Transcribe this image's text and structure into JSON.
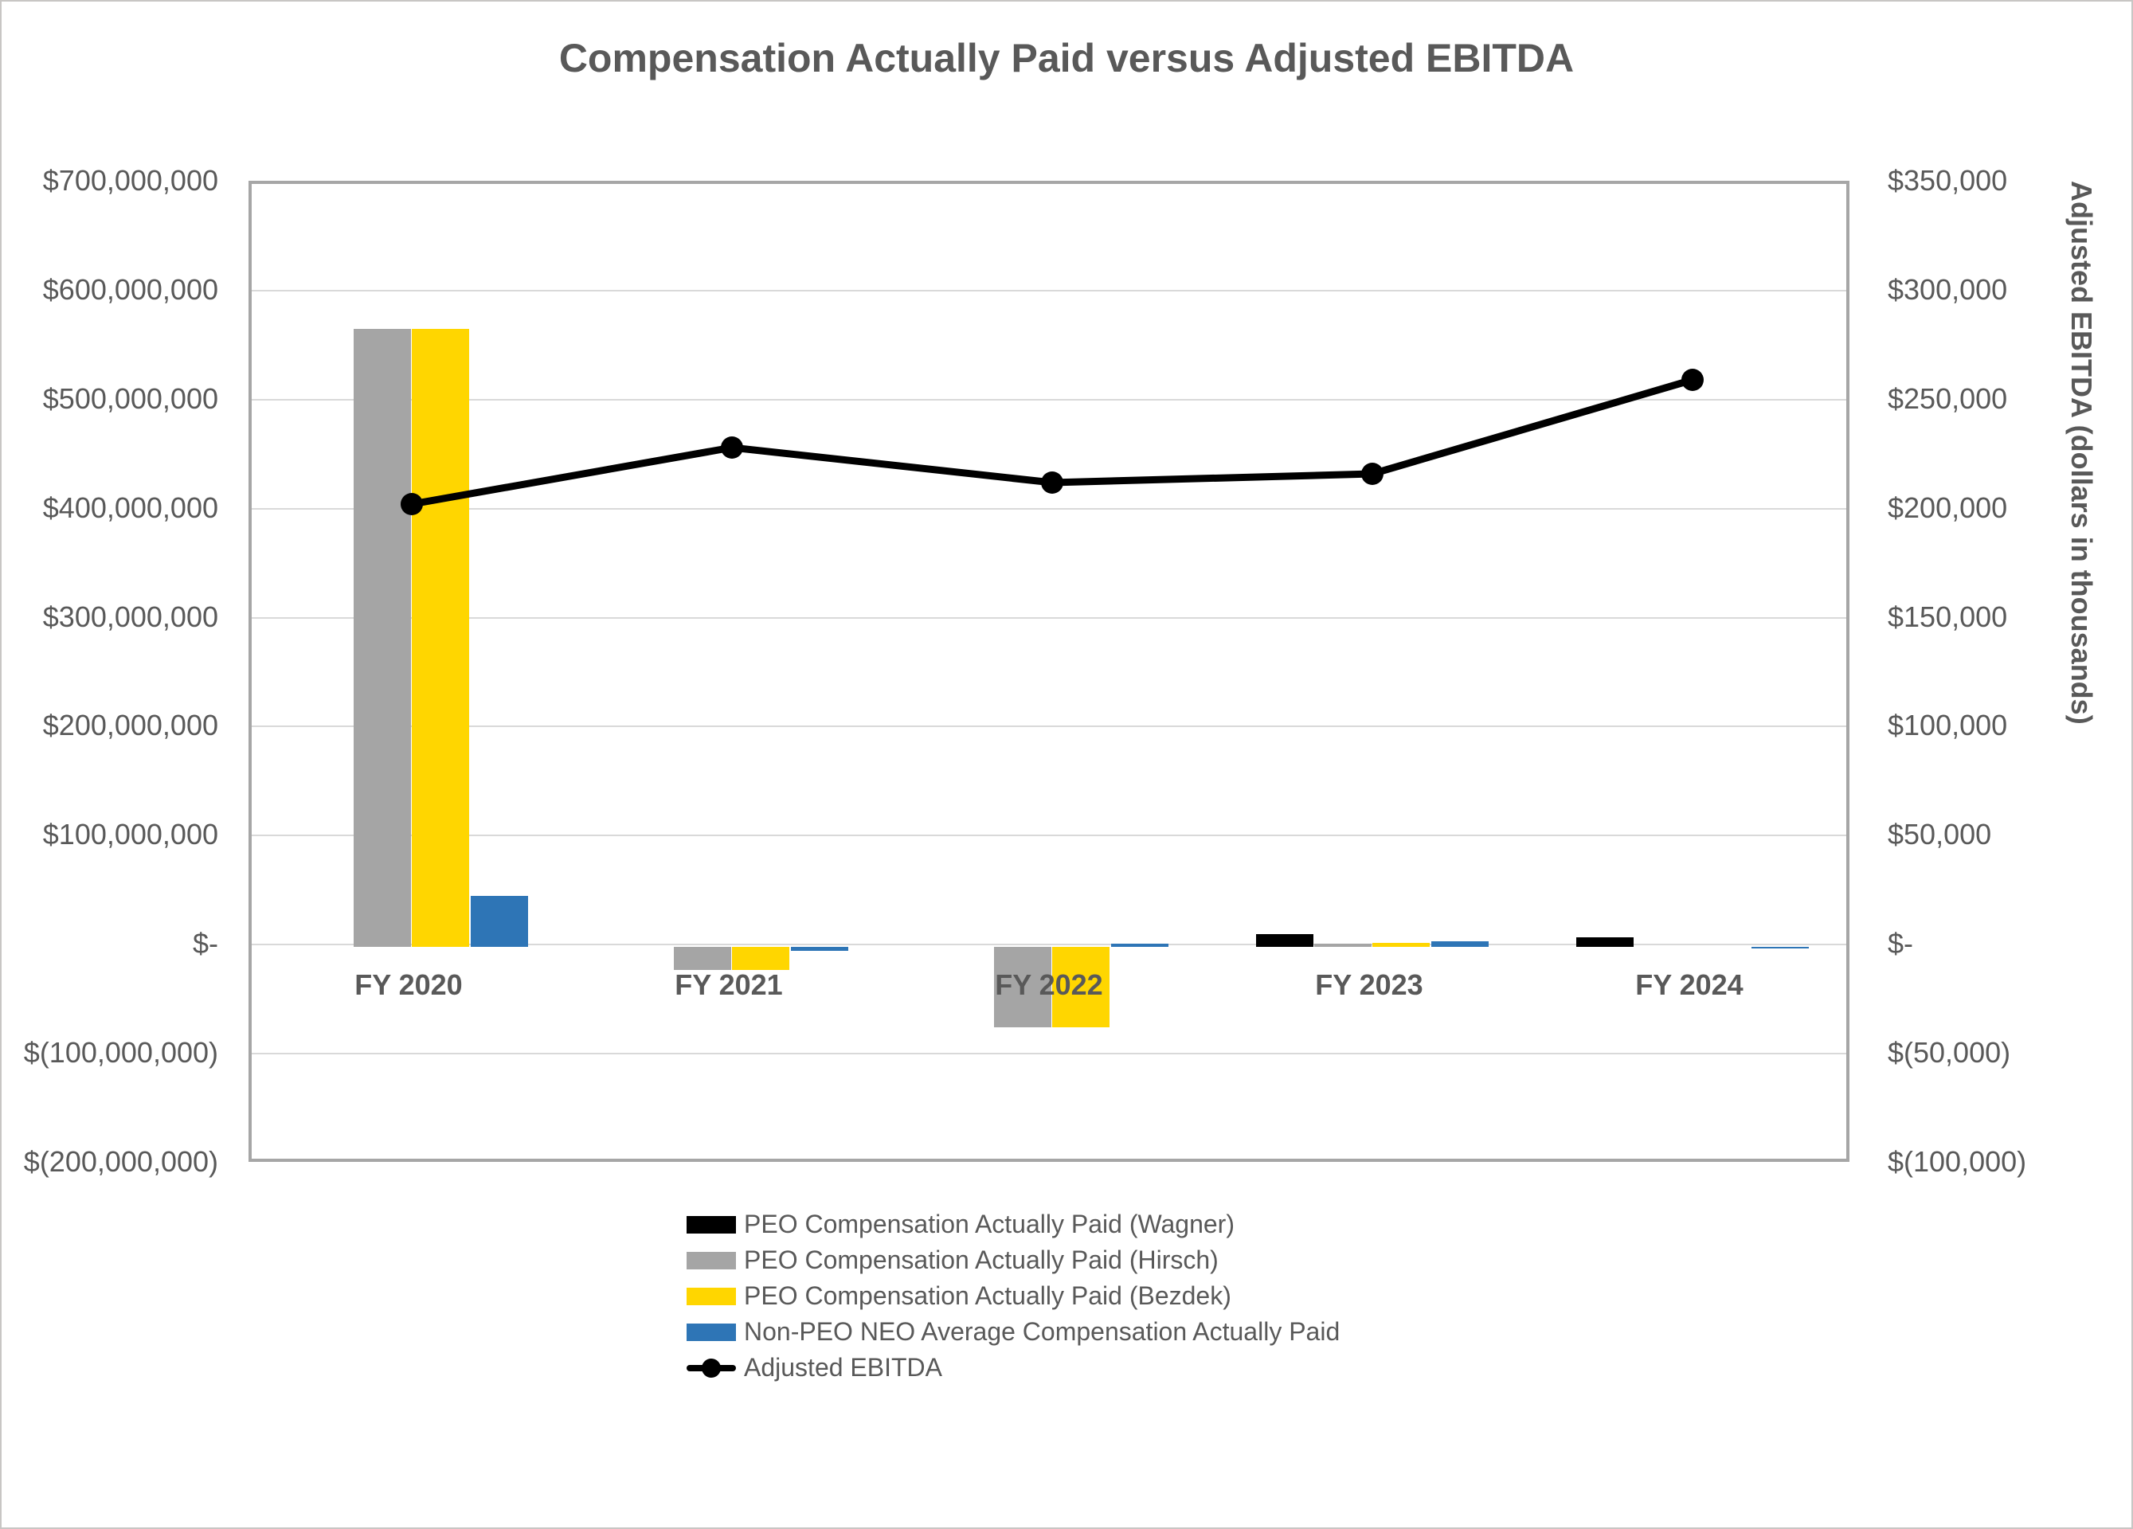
{
  "title": "Compensation Actually Paid versus Adjusted EBITDA",
  "right_axis_title": "Adjusted EBITDA (dollars in thousands)",
  "left_axis": {
    "ticks": [
      "$700,000,000",
      "$600,000,000",
      "$500,000,000",
      "$400,000,000",
      "$300,000,000",
      "$200,000,000",
      "$100,000,000",
      "$-",
      "$(100,000,000)",
      "$(200,000,000)"
    ],
    "max": 700000000,
    "min": -200000000,
    "step": 100000000
  },
  "right_axis": {
    "ticks": [
      "$350,000",
      "$300,000",
      "$250,000",
      "$200,000",
      "$150,000",
      "$100,000",
      "$50,000",
      "$-",
      "$(50,000)",
      "$(100,000)"
    ],
    "max": 350000,
    "min": -100000,
    "step": 50000
  },
  "chart_data": {
    "type": "bar",
    "subtype": "combo-bar-line-dual-axis",
    "categories": [
      "FY 2020",
      "FY 2021",
      "FY 2022",
      "FY 2023",
      "FY 2024"
    ],
    "series": [
      {
        "name": "PEO Compensation Actually Paid (Wagner)",
        "type": "bar",
        "axis": "left",
        "color": "#000000",
        "values": [
          0,
          0,
          0,
          12000000,
          9000000
        ]
      },
      {
        "name": "PEO Compensation Actually Paid (Hirsch)",
        "type": "bar",
        "axis": "left",
        "color": "#a5a5a5",
        "values": [
          567000000,
          -21000000,
          -74000000,
          3000000,
          0
        ]
      },
      {
        "name": "PEO Compensation Actually Paid (Bezdek)",
        "type": "bar",
        "axis": "left",
        "color": "#ffd600",
        "values": [
          567000000,
          -21000000,
          -74000000,
          4000000,
          0
        ]
      },
      {
        "name": "Non-PEO NEO Average Compensation Actually Paid",
        "type": "bar",
        "axis": "left",
        "color": "#2e75b6",
        "values": [
          47000000,
          -4000000,
          3000000,
          5000000,
          -1500000
        ]
      },
      {
        "name": "Adjusted EBITDA",
        "type": "line",
        "axis": "right",
        "color": "#000000",
        "values": [
          203000,
          229000,
          213000,
          217000,
          260000
        ]
      }
    ],
    "left_ylim": [
      -200000000,
      700000000
    ],
    "right_ylim": [
      -100000,
      350000
    ],
    "grid": true,
    "legend_position": "bottom"
  },
  "colors": {
    "text": "#595959",
    "gridline": "#d9d9d9",
    "plot_border": "#a6a6a6",
    "wagner": "#000000",
    "hirsch": "#a5a5a5",
    "bezdek": "#ffd600",
    "non_peo": "#2e75b6",
    "ebitda_line": "#000000"
  }
}
